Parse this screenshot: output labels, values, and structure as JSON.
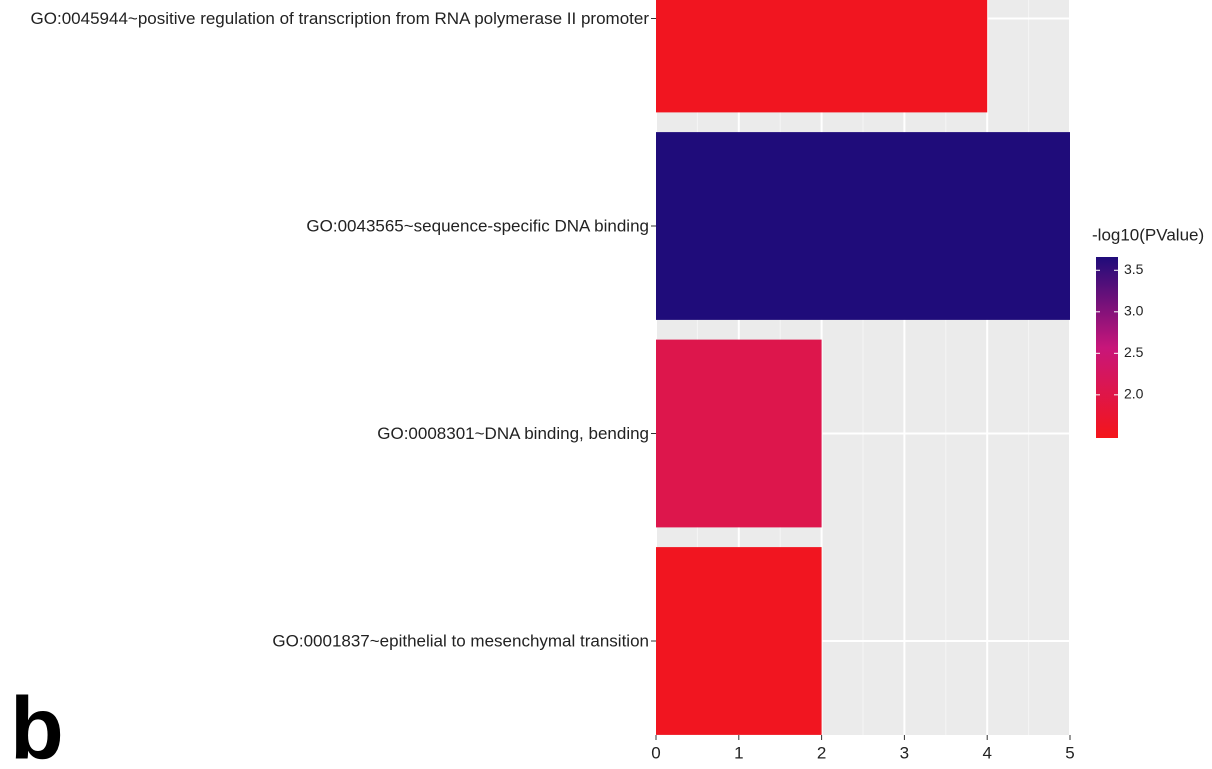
{
  "chart_data": {
    "type": "barh",
    "categories": [
      "GO:0045944~positive regulation of transcription from RNA polymerase II promoter",
      "GO:0043565~sequence-specific DNA binding",
      "GO:0008301~DNA binding, bending",
      "GO:0001837~epithelial to mesenchymal transition"
    ],
    "values": [
      4,
      5,
      2,
      2
    ],
    "color_values": [
      1.55,
      3.66,
      2.05,
      1.55
    ],
    "xlim": [
      0,
      5
    ],
    "xticks": [
      0,
      1,
      2,
      3,
      4,
      5
    ],
    "grid": true,
    "legend_title": "-log10(PValue)",
    "colorlim": [
      1.48,
      3.66
    ],
    "colorticks": [
      {
        "value": 2,
        "label": "2.0"
      },
      {
        "value": 2.5,
        "label": "2.5"
      },
      {
        "value": 3,
        "label": "3.0"
      },
      {
        "value": 3.5,
        "label": "3.5"
      }
    ],
    "colorscale": [
      "#f4151a",
      "#c8167a",
      "#1f0c7a"
    ],
    "panel_label": "b"
  }
}
